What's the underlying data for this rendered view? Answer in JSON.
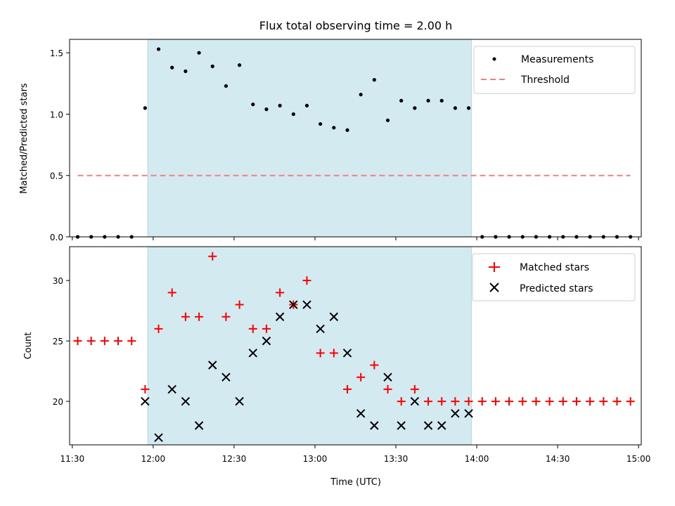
{
  "chart_data": [
    {
      "type": "scatter",
      "title": "Flux total observing time = 2.00 h",
      "ylabel": "Matched/Predicted stars",
      "xlabel": "",
      "x_tick_labels": [],
      "y_ticks": [
        "0.0",
        "0.5",
        "1.0",
        "1.5"
      ],
      "ylim": [
        0.0,
        1.61
      ],
      "xlim": [
        "11:29",
        "15:01"
      ],
      "grid": false,
      "legend_placement": "top-right",
      "shaded_interval": {
        "start": "11:58",
        "end": "13:58",
        "color": "#d4eaf1"
      },
      "series": [
        {
          "name": "Measurements",
          "marker": "dot",
          "color": "#000000",
          "x": [
            "11:32",
            "11:37",
            "11:42",
            "11:47",
            "11:52",
            "11:57",
            "12:02",
            "12:07",
            "12:12",
            "12:17",
            "12:22",
            "12:27",
            "12:32",
            "12:37",
            "12:42",
            "12:47",
            "12:52",
            "12:57",
            "13:02",
            "13:07",
            "13:12",
            "13:17",
            "13:22",
            "13:27",
            "13:32",
            "13:37",
            "13:42",
            "13:47",
            "13:52",
            "13:57",
            "14:02",
            "14:07",
            "14:12",
            "14:17",
            "14:22",
            "14:27",
            "14:32",
            "14:37",
            "14:42",
            "14:47",
            "14:52",
            "14:57"
          ],
          "values": [
            0,
            0,
            0,
            0,
            0,
            1.05,
            1.53,
            1.38,
            1.35,
            1.5,
            1.39,
            1.23,
            1.4,
            1.08,
            1.04,
            1.07,
            1.0,
            1.07,
            0.92,
            0.89,
            0.87,
            1.16,
            1.28,
            0.95,
            1.11,
            1.05,
            1.11,
            1.11,
            1.05,
            1.05,
            0,
            0,
            0,
            0,
            0,
            0,
            0,
            0,
            0,
            0,
            0,
            0
          ]
        },
        {
          "name": "Threshold",
          "marker": "dashed-line",
          "color": "#f08080",
          "x": [
            "11:32",
            "14:57"
          ],
          "values": [
            0.5,
            0.5
          ]
        }
      ]
    },
    {
      "type": "scatter",
      "title": "",
      "ylabel": "Count",
      "xlabel": "Time (UTC)",
      "x_tick_labels": [
        "11:30",
        "12:00",
        "12:30",
        "13:00",
        "13:30",
        "14:00",
        "14:30",
        "15:00"
      ],
      "y_ticks": [
        "20",
        "25",
        "30"
      ],
      "ylim": [
        16.4,
        32.8
      ],
      "xlim": [
        "11:29",
        "15:01"
      ],
      "grid": false,
      "legend_placement": "top-right",
      "shaded_interval": {
        "start": "11:58",
        "end": "13:58",
        "color": "#d4eaf1"
      },
      "series": [
        {
          "name": "Matched stars",
          "marker": "plus",
          "color": "#ff0000",
          "x": [
            "11:32",
            "11:37",
            "11:42",
            "11:47",
            "11:52",
            "11:57",
            "12:02",
            "12:07",
            "12:12",
            "12:17",
            "12:22",
            "12:27",
            "12:32",
            "12:37",
            "12:42",
            "12:47",
            "12:52",
            "12:57",
            "13:02",
            "13:07",
            "13:12",
            "13:17",
            "13:22",
            "13:27",
            "13:32",
            "13:37",
            "13:42",
            "13:47",
            "13:52",
            "13:57",
            "14:02",
            "14:07",
            "14:12",
            "14:17",
            "14:22",
            "14:27",
            "14:32",
            "14:37",
            "14:42",
            "14:47",
            "14:52",
            "14:57"
          ],
          "values": [
            25,
            25,
            25,
            25,
            25,
            21,
            26,
            29,
            27,
            27,
            32,
            27,
            28,
            26,
            26,
            29,
            28,
            30,
            24,
            24,
            21,
            22,
            23,
            21,
            20,
            21,
            20,
            20,
            20,
            20,
            20,
            20,
            20,
            20,
            20,
            20,
            20,
            20,
            20,
            20,
            20,
            20
          ]
        },
        {
          "name": "Predicted stars",
          "marker": "x",
          "color": "#000000",
          "x": [
            "11:57",
            "12:02",
            "12:07",
            "12:12",
            "12:17",
            "12:22",
            "12:27",
            "12:32",
            "12:37",
            "12:42",
            "12:47",
            "12:52",
            "12:57",
            "13:02",
            "13:07",
            "13:12",
            "13:17",
            "13:22",
            "13:27",
            "13:32",
            "13:37",
            "13:42",
            "13:47",
            "13:52",
            "13:57"
          ],
          "values": [
            20,
            17,
            21,
            20,
            18,
            23,
            22,
            20,
            24,
            25,
            27,
            28,
            28,
            26,
            27,
            24,
            19,
            18,
            22,
            18,
            20,
            18,
            18,
            19,
            19
          ]
        }
      ]
    }
  ]
}
